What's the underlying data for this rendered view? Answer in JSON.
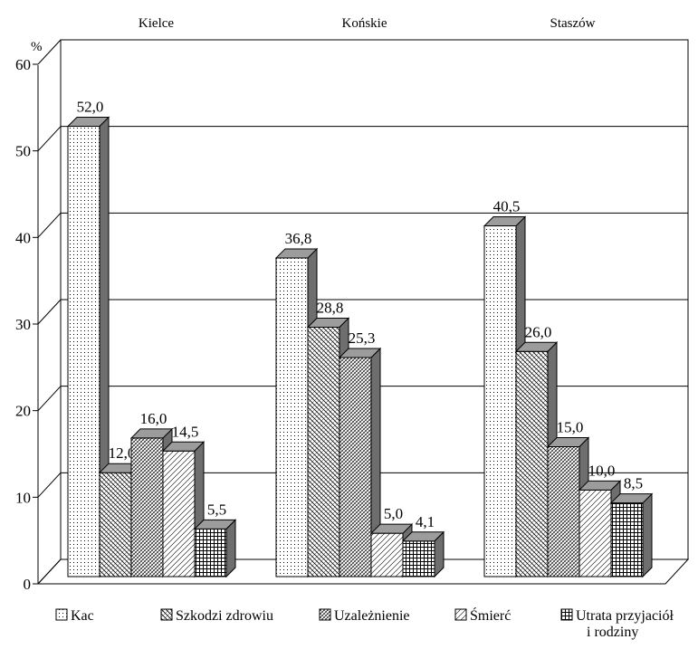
{
  "chart_data": {
    "type": "bar",
    "categories": [
      "Kielce",
      "Końskie",
      "Staszów"
    ],
    "series": [
      {
        "name": "Kac",
        "values": [
          52.0,
          36.8,
          40.5
        ],
        "labels": [
          "52,0",
          "36,8",
          "40,5"
        ],
        "pattern": "pat-kac"
      },
      {
        "name": "Szkodzi zdrowiu",
        "values": [
          12.0,
          28.8,
          26.0
        ],
        "labels": [
          "12,0",
          "28,8",
          "26,0"
        ],
        "pattern": "pat-szkodzi"
      },
      {
        "name": "Uzależnienie",
        "values": [
          16.0,
          25.3,
          15.0
        ],
        "labels": [
          "16,0",
          "25,3",
          "15,0"
        ],
        "pattern": "pat-uzal"
      },
      {
        "name": "Śmierć",
        "values": [
          14.5,
          5.0,
          10.0
        ],
        "labels": [
          "14,5",
          "5,0",
          "10,0"
        ],
        "pattern": "pat-smierc"
      },
      {
        "name": "Utrata przyjaciół i rodziny",
        "legend_lines": [
          "Utrata przyjaciół",
          "i rodziny"
        ],
        "values": [
          5.5,
          4.1,
          8.5
        ],
        "labels": [
          "5,5",
          "4,1",
          "8,5"
        ],
        "pattern": "pat-utrata"
      }
    ],
    "ylabel": "%",
    "ylim": [
      0,
      60
    ],
    "yticks": [
      0,
      10,
      20,
      30,
      40,
      50,
      60
    ],
    "grid": true,
    "legend_position": "bottom"
  }
}
